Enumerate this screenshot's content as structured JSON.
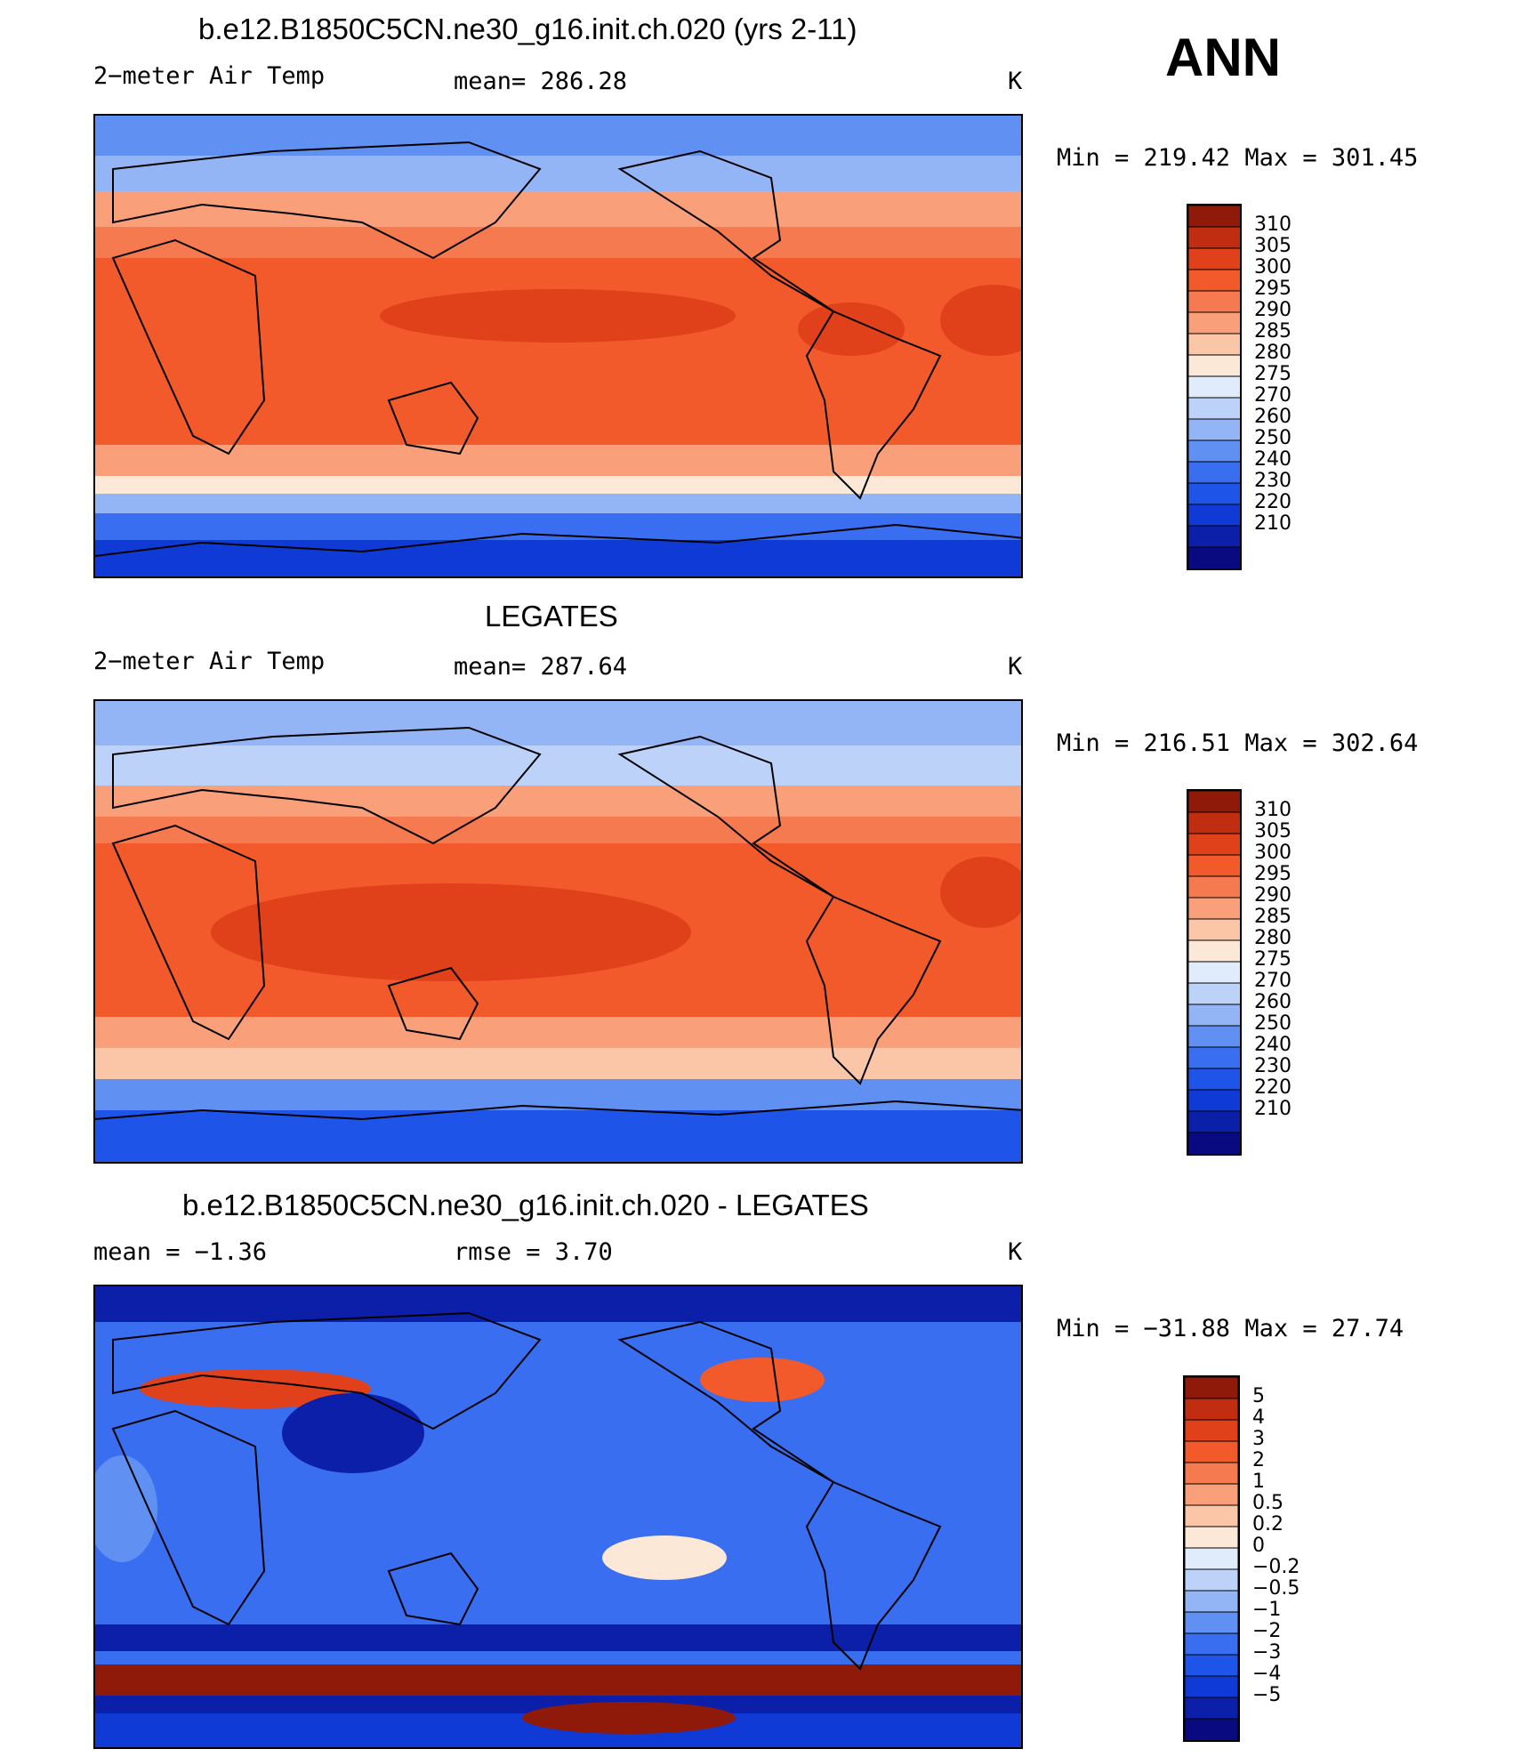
{
  "season": "ANN",
  "units": "K",
  "colors": {
    "abs_scale": [
      "#0a0a80",
      "#0b1fa8",
      "#0f3ad6",
      "#1e55e8",
      "#3a6ef0",
      "#6090f2",
      "#93b4f5",
      "#bcd2f8",
      "#e0ecfb",
      "#fce8d6",
      "#fbc6a8",
      "#f9a07b",
      "#f67a4f",
      "#f25a2c",
      "#e0401a",
      "#c02d10",
      "#8f1a0a"
    ],
    "diff_scale": [
      "#0a0a80",
      "#0b1fa8",
      "#0f3ad6",
      "#1e55e8",
      "#3a6ef0",
      "#6090f2",
      "#93b4f5",
      "#bcd2f8",
      "#e0ecfb",
      "#fce8d6",
      "#fbc6a8",
      "#f9a07b",
      "#f67a4f",
      "#f25a2c",
      "#e0401a",
      "#c02d10",
      "#8f1a0a"
    ]
  },
  "panels": [
    {
      "title": "b.e12.B1850C5CN.ne30_g16.init.ch.020 (yrs 2-11)",
      "left_label": "2−meter Air Temp",
      "mid_label": "mean=  286.28",
      "units": "K",
      "minmax": "Min  =  219.42  Max  =  301.45",
      "colorbar_labels": [
        "310",
        "305",
        "300",
        "295",
        "290",
        "285",
        "280",
        "275",
        "270",
        "260",
        "250",
        "240",
        "230",
        "220",
        "210"
      ],
      "map_icon": "world-map-temperature"
    },
    {
      "title": "LEGATES",
      "left_label": "2−meter Air Temp",
      "mid_label": "mean=  287.64",
      "units": "K",
      "minmax": "Min  =  216.51  Max  =  302.64",
      "colorbar_labels": [
        "310",
        "305",
        "300",
        "295",
        "290",
        "285",
        "280",
        "275",
        "270",
        "260",
        "250",
        "240",
        "230",
        "220",
        "210"
      ],
      "map_icon": "world-map-temperature"
    },
    {
      "title": "b.e12.B1850C5CN.ne30_g16.init.ch.020 - LEGATES",
      "left_label": "mean  =    −1.36",
      "mid_label": "rmse  =     3.70",
      "units": "K",
      "minmax": "Min  =  −31.88  Max  =    27.74",
      "colorbar_labels": [
        "5",
        "4",
        "3",
        "2",
        "1",
        "0.5",
        "0.2",
        "0",
        "−0.2",
        "−0.5",
        "−1",
        "−2",
        "−3",
        "−4",
        "−5"
      ],
      "map_icon": "world-map-difference"
    }
  ]
}
